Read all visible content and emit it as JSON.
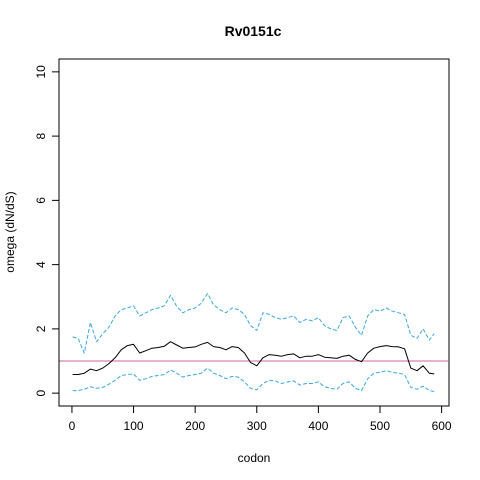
{
  "chart_data": {
    "type": "line",
    "title": "Rv0151c",
    "xlabel": "codon",
    "ylabel": "omega (dN/dS)",
    "xlim": [
      -21,
      612
    ],
    "ylim": [
      -0.4,
      10.4
    ],
    "xticks": [
      0,
      100,
      200,
      300,
      400,
      500,
      600
    ],
    "yticks": [
      0,
      2,
      4,
      6,
      8,
      10
    ],
    "reference_line": {
      "y": 1,
      "color": "#cc6699"
    },
    "grid": false,
    "legend": "none",
    "series": [
      {
        "role": "estimate",
        "color": "#000000",
        "style": "solid",
        "x": [
          1,
          10,
          20,
          30,
          40,
          50,
          60,
          70,
          80,
          90,
          100,
          110,
          120,
          130,
          140,
          150,
          160,
          170,
          180,
          190,
          200,
          210,
          220,
          230,
          240,
          250,
          260,
          270,
          280,
          290,
          300,
          310,
          320,
          330,
          340,
          350,
          360,
          370,
          380,
          390,
          400,
          410,
          420,
          430,
          440,
          450,
          460,
          470,
          480,
          490,
          500,
          510,
          520,
          530,
          540,
          550,
          560,
          570,
          580,
          588
        ],
        "y": [
          0.58,
          0.58,
          0.62,
          0.75,
          0.7,
          0.78,
          0.92,
          1.1,
          1.35,
          1.48,
          1.52,
          1.25,
          1.32,
          1.4,
          1.42,
          1.46,
          1.6,
          1.5,
          1.4,
          1.42,
          1.44,
          1.52,
          1.58,
          1.45,
          1.42,
          1.35,
          1.45,
          1.42,
          1.25,
          0.95,
          0.85,
          1.1,
          1.2,
          1.18,
          1.15,
          1.2,
          1.22,
          1.1,
          1.15,
          1.15,
          1.2,
          1.12,
          1.1,
          1.08,
          1.15,
          1.18,
          1.05,
          0.98,
          1.25,
          1.4,
          1.45,
          1.48,
          1.45,
          1.44,
          1.38,
          0.78,
          0.7,
          0.85,
          0.62,
          0.6
        ]
      },
      {
        "role": "upper-bound",
        "color": "#3ba8e6",
        "style": "dashed",
        "x": [
          1,
          10,
          20,
          30,
          40,
          50,
          60,
          70,
          80,
          90,
          100,
          110,
          120,
          130,
          140,
          150,
          160,
          170,
          180,
          190,
          200,
          210,
          220,
          230,
          240,
          250,
          260,
          270,
          280,
          290,
          300,
          310,
          320,
          330,
          340,
          350,
          360,
          370,
          380,
          390,
          400,
          410,
          420,
          430,
          440,
          450,
          460,
          470,
          480,
          490,
          500,
          510,
          520,
          530,
          540,
          550,
          560,
          570,
          580,
          588
        ],
        "y": [
          1.75,
          1.7,
          1.25,
          2.2,
          1.6,
          1.85,
          2.05,
          2.4,
          2.6,
          2.65,
          2.72,
          2.4,
          2.5,
          2.6,
          2.65,
          2.72,
          3.05,
          2.7,
          2.5,
          2.6,
          2.65,
          2.8,
          3.1,
          2.75,
          2.6,
          2.5,
          2.65,
          2.6,
          2.45,
          2.1,
          1.95,
          2.5,
          2.45,
          2.35,
          2.3,
          2.35,
          2.4,
          2.2,
          2.3,
          2.25,
          2.35,
          2.1,
          2.0,
          1.95,
          2.35,
          2.4,
          2.05,
          1.8,
          2.4,
          2.6,
          2.55,
          2.65,
          2.55,
          2.5,
          2.45,
          1.8,
          1.7,
          2.0,
          1.65,
          1.85
        ]
      },
      {
        "role": "lower-bound",
        "color": "#3ba8e6",
        "style": "dashed",
        "x": [
          1,
          10,
          20,
          30,
          40,
          50,
          60,
          70,
          80,
          90,
          100,
          110,
          120,
          130,
          140,
          150,
          160,
          170,
          180,
          190,
          200,
          210,
          220,
          230,
          240,
          250,
          260,
          270,
          280,
          290,
          300,
          310,
          320,
          330,
          340,
          350,
          360,
          370,
          380,
          390,
          400,
          410,
          420,
          430,
          440,
          450,
          460,
          470,
          480,
          490,
          500,
          510,
          520,
          530,
          540,
          550,
          560,
          570,
          580,
          588
        ],
        "y": [
          0.08,
          0.08,
          0.12,
          0.2,
          0.15,
          0.18,
          0.28,
          0.4,
          0.55,
          0.58,
          0.6,
          0.4,
          0.45,
          0.52,
          0.55,
          0.58,
          0.72,
          0.62,
          0.5,
          0.55,
          0.58,
          0.62,
          0.78,
          0.62,
          0.55,
          0.45,
          0.52,
          0.5,
          0.35,
          0.15,
          0.1,
          0.3,
          0.4,
          0.38,
          0.3,
          0.35,
          0.38,
          0.25,
          0.3,
          0.3,
          0.35,
          0.2,
          0.15,
          0.12,
          0.3,
          0.35,
          0.15,
          0.08,
          0.45,
          0.62,
          0.65,
          0.7,
          0.65,
          0.62,
          0.58,
          0.18,
          0.12,
          0.22,
          0.08,
          0.05
        ]
      }
    ]
  }
}
